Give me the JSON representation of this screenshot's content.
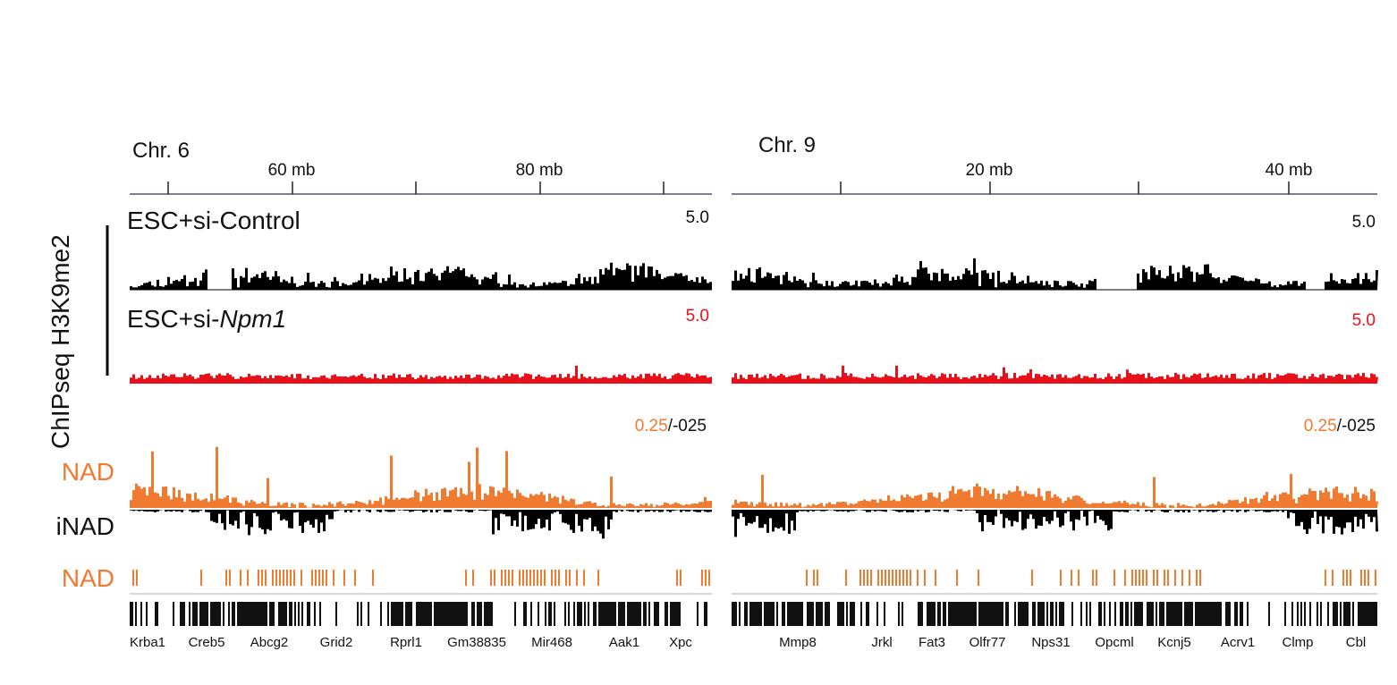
{
  "y_axis_label": "ChIPseq H3K9me2",
  "row_labels": {
    "nad": "NAD",
    "inad": "iNAD",
    "nad_bars": "NAD"
  },
  "colors": {
    "control": "#000000",
    "npm1": "#e8111a",
    "nad": "#f07a30",
    "inad": "#000000",
    "axis": "#555566"
  },
  "panels": [
    {
      "chromosome": "Chr. 6",
      "ticks": [
        {
          "label": ""
        },
        {
          "label": "60 mb"
        },
        {
          "label": ""
        },
        {
          "label": "80 mb"
        },
        {
          "label": ""
        }
      ],
      "control": {
        "title_prefix": "ESC+si-",
        "title_suffix": "Control",
        "scale": "5.0"
      },
      "npm1": {
        "title_prefix": "ESC+si-",
        "title_suffix": "Npm1",
        "scale": "5.0"
      },
      "nad_scale": {
        "pos": "0.25",
        "sep": "/-025"
      },
      "genes": [
        "Krba1",
        "Creb5",
        "Abcg2",
        "Grid2",
        "Rprl1",
        "Gm38835",
        "Mir468",
        "Aak1",
        "Xpc"
      ]
    },
    {
      "chromosome": "Chr. 9",
      "ticks": [
        {
          "label": ""
        },
        {
          "label": "20 mb"
        },
        {
          "label": ""
        },
        {
          "label": "40 mb"
        }
      ],
      "control": {
        "title_prefix": "",
        "title_suffix": "",
        "scale": "5.0"
      },
      "npm1": {
        "title_prefix": "",
        "title_suffix": "",
        "scale": "5.0"
      },
      "nad_scale": {
        "pos": "0.25",
        "sep": "/-025"
      },
      "genes": [
        "Mmp8",
        "Jrkl",
        "Fat3",
        "Olfr77",
        "Nps31",
        "Opcml",
        "Kcnj5",
        "Acrv1",
        "Clmp",
        "Cbl"
      ]
    }
  ]
}
